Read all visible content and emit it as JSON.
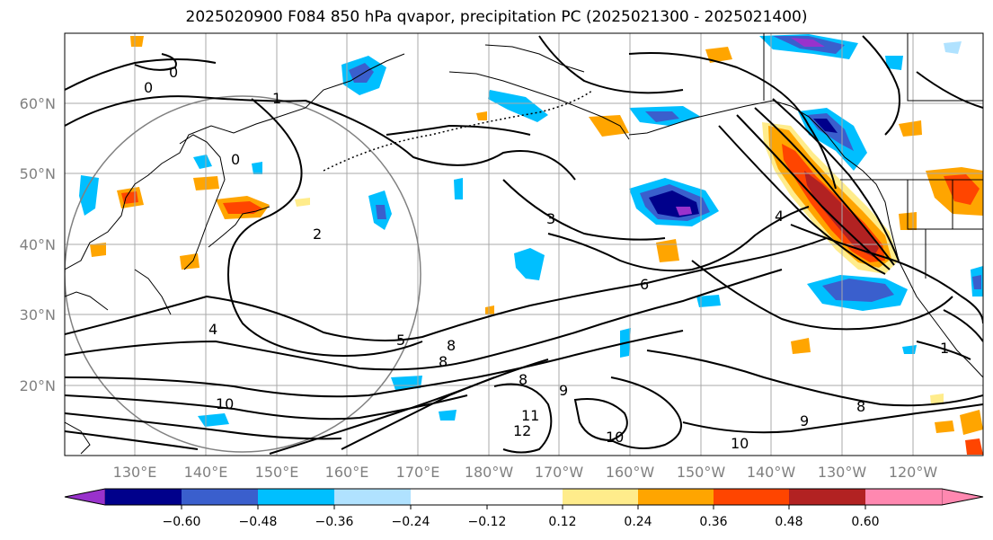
{
  "title": "2025020900 F084 850 hPa qvapor, precipitation PC (2025021300 - 2025021400)",
  "map": {
    "lat_labels": [
      "60°N",
      "50°N",
      "40°N",
      "30°N",
      "20°N"
    ],
    "lon_labels": [
      "130°E",
      "140°E",
      "150°E",
      "160°E",
      "170°E",
      "180°W",
      "170°W",
      "160°W",
      "150°W",
      "140°W",
      "130°W",
      "120°W"
    ],
    "contour_labels": [
      "0",
      "0",
      "0",
      "1",
      "2",
      "3",
      "4",
      "4",
      "5",
      "6",
      "8",
      "8",
      "8",
      "9",
      "10",
      "10",
      "10",
      "11",
      "12",
      "1",
      "9",
      "8"
    ]
  },
  "colorbar": {
    "colors": [
      "#9932cc",
      "#00008b",
      "#3a5fcd",
      "#00bfff",
      "#b0e2ff",
      "#ffffff",
      "#ffec8b",
      "#ffa500",
      "#ff4500",
      "#b22222",
      "#ff88b0"
    ],
    "tick_labels": [
      "−0.60",
      "−0.48",
      "−0.36",
      "−0.24",
      "−0.12",
      "0.12",
      "0.24",
      "0.36",
      "0.48",
      "0.60"
    ]
  }
}
